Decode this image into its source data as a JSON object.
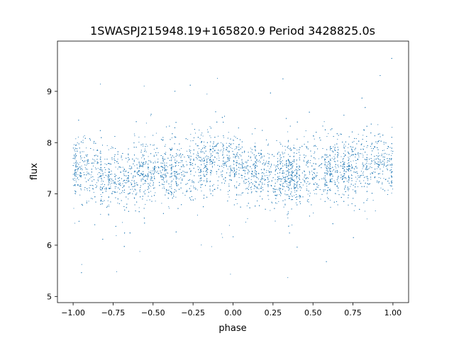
{
  "chart_data": {
    "type": "scatter",
    "title": "1SWASPJ215948.19+165820.9 Period 3428825.0s",
    "xlabel": "phase",
    "ylabel": "flux",
    "xlim": [
      -1.098,
      1.098
    ],
    "ylim": [
      4.88,
      9.98
    ],
    "xticks": [
      -1.0,
      -0.75,
      -0.5,
      -0.25,
      0.0,
      0.25,
      0.5,
      0.75,
      1.0
    ],
    "xtick_labels": [
      "−1.00",
      "−0.75",
      "−0.50",
      "−0.25",
      "0.00",
      "0.25",
      "0.50",
      "0.75",
      "1.00"
    ],
    "yticks": [
      5,
      6,
      7,
      8,
      9
    ],
    "ytick_labels": [
      "5",
      "6",
      "7",
      "8",
      "9"
    ],
    "grid": false,
    "marker_color": "#1f77b4",
    "binned_phase": [
      -1.0,
      -0.9,
      -0.8,
      -0.7,
      -0.6,
      -0.5,
      -0.4,
      -0.3,
      -0.2,
      -0.1,
      0.0,
      0.1,
      0.2,
      0.3,
      0.4,
      0.5,
      0.6,
      0.7,
      0.8,
      0.9,
      1.0
    ],
    "binned_mean_flux": [
      7.45,
      7.4,
      7.3,
      7.3,
      7.4,
      7.45,
      7.5,
      7.5,
      7.55,
      7.65,
      7.55,
      7.45,
      7.35,
      7.3,
      7.35,
      7.45,
      7.5,
      7.5,
      7.55,
      7.6,
      7.5
    ],
    "core_spread": 0.3,
    "outlier_fraction": 0.06,
    "flux_range": [
      5.1,
      9.75
    ]
  }
}
